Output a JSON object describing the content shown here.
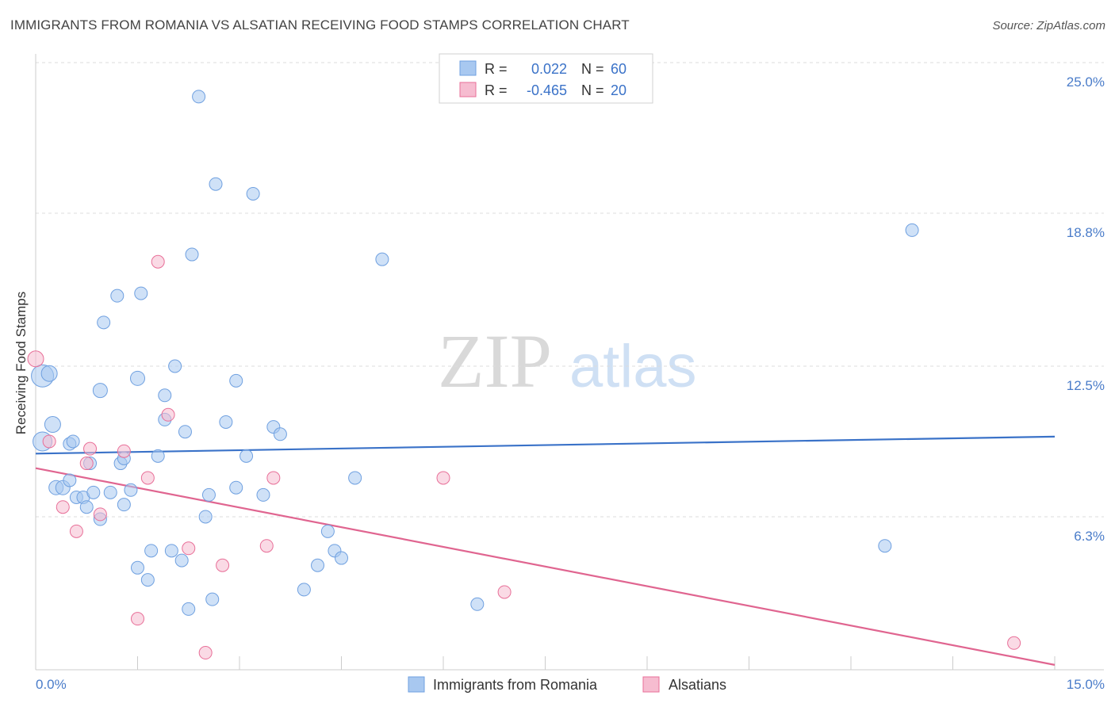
{
  "header": {
    "title": "IMMIGRANTS FROM ROMANIA VS ALSATIAN RECEIVING FOOD STAMPS CORRELATION CHART",
    "source": "Source: ZipAtlas.com"
  },
  "watermark": {
    "zip": "ZIP",
    "atlas": "atlas"
  },
  "legend_top": {
    "rows": [
      {
        "r_label": "R =",
        "r_value": "0.022",
        "n_label": "N =",
        "n_value": "60",
        "color": "#a8c8f0"
      },
      {
        "r_label": "R =",
        "r_value": "-0.465",
        "n_label": "N =",
        "n_value": "20",
        "color": "#f6bcd0"
      }
    ]
  },
  "legend_bottom": {
    "items": [
      {
        "label": "Immigrants from Romania",
        "color": "#a8c8f0"
      },
      {
        "label": "Alsatians",
        "color": "#f6bcd0"
      }
    ]
  },
  "chart_data": {
    "type": "scatter",
    "title": "IMMIGRANTS FROM ROMANIA VS ALSATIAN RECEIVING FOOD STAMPS CORRELATION CHART",
    "xlabel": "",
    "ylabel": "Receiving Food Stamps",
    "xlim": [
      0,
      15
    ],
    "ylim": [
      0,
      25
    ],
    "x_tick_labels": [
      "0.0%",
      "15.0%"
    ],
    "y_ticks": [
      6.3,
      12.5,
      18.8,
      25.0
    ],
    "y_tick_labels": [
      "6.3%",
      "12.5%",
      "18.8%",
      "25.0%"
    ],
    "grid": true,
    "series": [
      {
        "name": "Immigrants from Romania",
        "color": "#6fa0e0",
        "fill": "#a8c8f0",
        "trend": [
          [
            0.0,
            8.9
          ],
          [
            15.0,
            9.6
          ]
        ],
        "points": [
          [
            0.1,
            12.1,
            14
          ],
          [
            0.2,
            12.2,
            10
          ],
          [
            0.1,
            9.4,
            12
          ],
          [
            0.25,
            10.1,
            10
          ],
          [
            0.5,
            9.3,
            8
          ],
          [
            0.55,
            9.4,
            8
          ],
          [
            0.3,
            7.5,
            9
          ],
          [
            0.4,
            7.5,
            9
          ],
          [
            0.5,
            7.8,
            8
          ],
          [
            0.6,
            7.1,
            8
          ],
          [
            0.7,
            7.1,
            8
          ],
          [
            0.75,
            6.7,
            8
          ],
          [
            0.8,
            8.5,
            8
          ],
          [
            0.85,
            7.3,
            8
          ],
          [
            0.95,
            6.2,
            8
          ],
          [
            1.1,
            7.3,
            8
          ],
          [
            0.95,
            11.5,
            9
          ],
          [
            1.0,
            14.3,
            8
          ],
          [
            1.2,
            15.4,
            8
          ],
          [
            1.25,
            8.5,
            8
          ],
          [
            1.3,
            8.7,
            8
          ],
          [
            1.3,
            6.8,
            8
          ],
          [
            1.4,
            7.4,
            8
          ],
          [
            1.5,
            12.0,
            9
          ],
          [
            1.55,
            15.5,
            8
          ],
          [
            1.5,
            4.2,
            8
          ],
          [
            1.65,
            3.7,
            8
          ],
          [
            1.7,
            4.9,
            8
          ],
          [
            1.8,
            8.8,
            8
          ],
          [
            1.9,
            10.3,
            8
          ],
          [
            1.9,
            11.3,
            8
          ],
          [
            2.0,
            4.9,
            8
          ],
          [
            2.05,
            12.5,
            8
          ],
          [
            2.15,
            4.5,
            8
          ],
          [
            2.2,
            9.8,
            8
          ],
          [
            2.25,
            2.5,
            8
          ],
          [
            2.3,
            17.1,
            8
          ],
          [
            2.4,
            23.6,
            8
          ],
          [
            2.5,
            6.3,
            8
          ],
          [
            2.55,
            7.2,
            8
          ],
          [
            2.6,
            2.9,
            8
          ],
          [
            2.65,
            20.0,
            8
          ],
          [
            2.8,
            10.2,
            8
          ],
          [
            2.95,
            7.5,
            8
          ],
          [
            2.95,
            11.9,
            8
          ],
          [
            3.1,
            8.8,
            8
          ],
          [
            3.2,
            19.6,
            8
          ],
          [
            3.35,
            7.2,
            8
          ],
          [
            3.5,
            10.0,
            8
          ],
          [
            3.6,
            9.7,
            8
          ],
          [
            3.95,
            3.3,
            8
          ],
          [
            4.15,
            4.3,
            8
          ],
          [
            4.3,
            5.7,
            8
          ],
          [
            4.4,
            4.9,
            8
          ],
          [
            4.5,
            4.6,
            8
          ],
          [
            4.7,
            7.9,
            8
          ],
          [
            5.1,
            16.9,
            8
          ],
          [
            6.5,
            2.7,
            8
          ],
          [
            12.5,
            5.1,
            8
          ],
          [
            12.9,
            18.1,
            8
          ]
        ]
      },
      {
        "name": "Alsatians",
        "color": "#e86f98",
        "fill": "#f6bcd0",
        "trend": [
          [
            0.0,
            8.3
          ],
          [
            15.0,
            0.2
          ]
        ],
        "points": [
          [
            0.0,
            12.8,
            10
          ],
          [
            0.2,
            9.4,
            8
          ],
          [
            0.4,
            6.7,
            8
          ],
          [
            0.6,
            5.7,
            8
          ],
          [
            0.75,
            8.5,
            8
          ],
          [
            0.8,
            9.1,
            8
          ],
          [
            0.95,
            6.4,
            8
          ],
          [
            1.3,
            9.0,
            8
          ],
          [
            1.5,
            2.1,
            8
          ],
          [
            1.65,
            7.9,
            8
          ],
          [
            1.8,
            16.8,
            8
          ],
          [
            1.95,
            10.5,
            8
          ],
          [
            2.25,
            5.0,
            8
          ],
          [
            2.5,
            0.7,
            8
          ],
          [
            2.75,
            4.3,
            8
          ],
          [
            3.4,
            5.1,
            8
          ],
          [
            3.5,
            7.9,
            8
          ],
          [
            6.0,
            7.9,
            8
          ],
          [
            6.9,
            3.2,
            8
          ],
          [
            14.4,
            1.1,
            8
          ]
        ]
      }
    ]
  }
}
